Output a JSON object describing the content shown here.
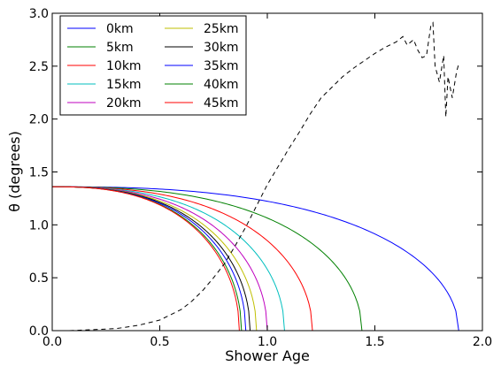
{
  "chart_data": {
    "type": "line",
    "xlabel": "Shower Age",
    "ylabel": "θ (degrees)",
    "xlim": [
      0.0,
      2.0
    ],
    "ylim": [
      0.0,
      3.0
    ],
    "xticks": [
      "0.0",
      "0.5",
      "1.0",
      "1.5",
      "2.0"
    ],
    "yticks": [
      "0.0",
      "0.5",
      "1.0",
      "1.5",
      "2.0",
      "2.5",
      "3.0"
    ],
    "legend_position": "top-left",
    "legend_columns": 2,
    "series": [
      {
        "name": "0km",
        "color": "#0000ff",
        "end_age": 1.89
      },
      {
        "name": "5km",
        "color": "#008000",
        "end_age": 1.44
      },
      {
        "name": "10km",
        "color": "#ff0000",
        "end_age": 1.21
      },
      {
        "name": "15km",
        "color": "#00bfbf",
        "end_age": 1.08
      },
      {
        "name": "20km",
        "color": "#bf00bf",
        "end_age": 1.0
      },
      {
        "name": "25km",
        "color": "#bfbf00",
        "end_age": 0.95
      },
      {
        "name": "30km",
        "color": "#000000",
        "end_age": 0.92
      },
      {
        "name": "35km",
        "color": "#0000ff",
        "end_age": 0.9
      },
      {
        "name": "40km",
        "color": "#008000",
        "end_age": 0.88
      },
      {
        "name": "45km",
        "color": "#ff0000",
        "end_age": 0.87
      }
    ],
    "start_theta": 1.36,
    "dashed_series": {
      "color": "#000000",
      "style": "dashed",
      "points": [
        [
          0.08,
          0.0
        ],
        [
          0.2,
          0.01
        ],
        [
          0.3,
          0.02
        ],
        [
          0.4,
          0.05
        ],
        [
          0.5,
          0.1
        ],
        [
          0.55,
          0.15
        ],
        [
          0.6,
          0.2
        ],
        [
          0.65,
          0.28
        ],
        [
          0.7,
          0.38
        ],
        [
          0.75,
          0.5
        ],
        [
          0.8,
          0.63
        ],
        [
          0.85,
          0.8
        ],
        [
          0.9,
          0.98
        ],
        [
          0.95,
          1.18
        ],
        [
          1.0,
          1.38
        ],
        [
          1.05,
          1.55
        ],
        [
          1.1,
          1.72
        ],
        [
          1.15,
          1.88
        ],
        [
          1.2,
          2.05
        ],
        [
          1.25,
          2.2
        ],
        [
          1.3,
          2.3
        ],
        [
          1.35,
          2.4
        ],
        [
          1.4,
          2.48
        ],
        [
          1.45,
          2.55
        ],
        [
          1.5,
          2.62
        ],
        [
          1.55,
          2.68
        ],
        [
          1.6,
          2.73
        ],
        [
          1.63,
          2.78
        ],
        [
          1.65,
          2.7
        ],
        [
          1.68,
          2.75
        ],
        [
          1.7,
          2.65
        ],
        [
          1.72,
          2.58
        ],
        [
          1.74,
          2.6
        ],
        [
          1.76,
          2.88
        ],
        [
          1.77,
          2.91
        ],
        [
          1.78,
          2.5
        ],
        [
          1.8,
          2.35
        ],
        [
          1.82,
          2.6
        ],
        [
          1.83,
          2.02
        ],
        [
          1.84,
          2.4
        ],
        [
          1.86,
          2.2
        ],
        [
          1.88,
          2.45
        ],
        [
          1.89,
          2.52
        ]
      ]
    }
  }
}
